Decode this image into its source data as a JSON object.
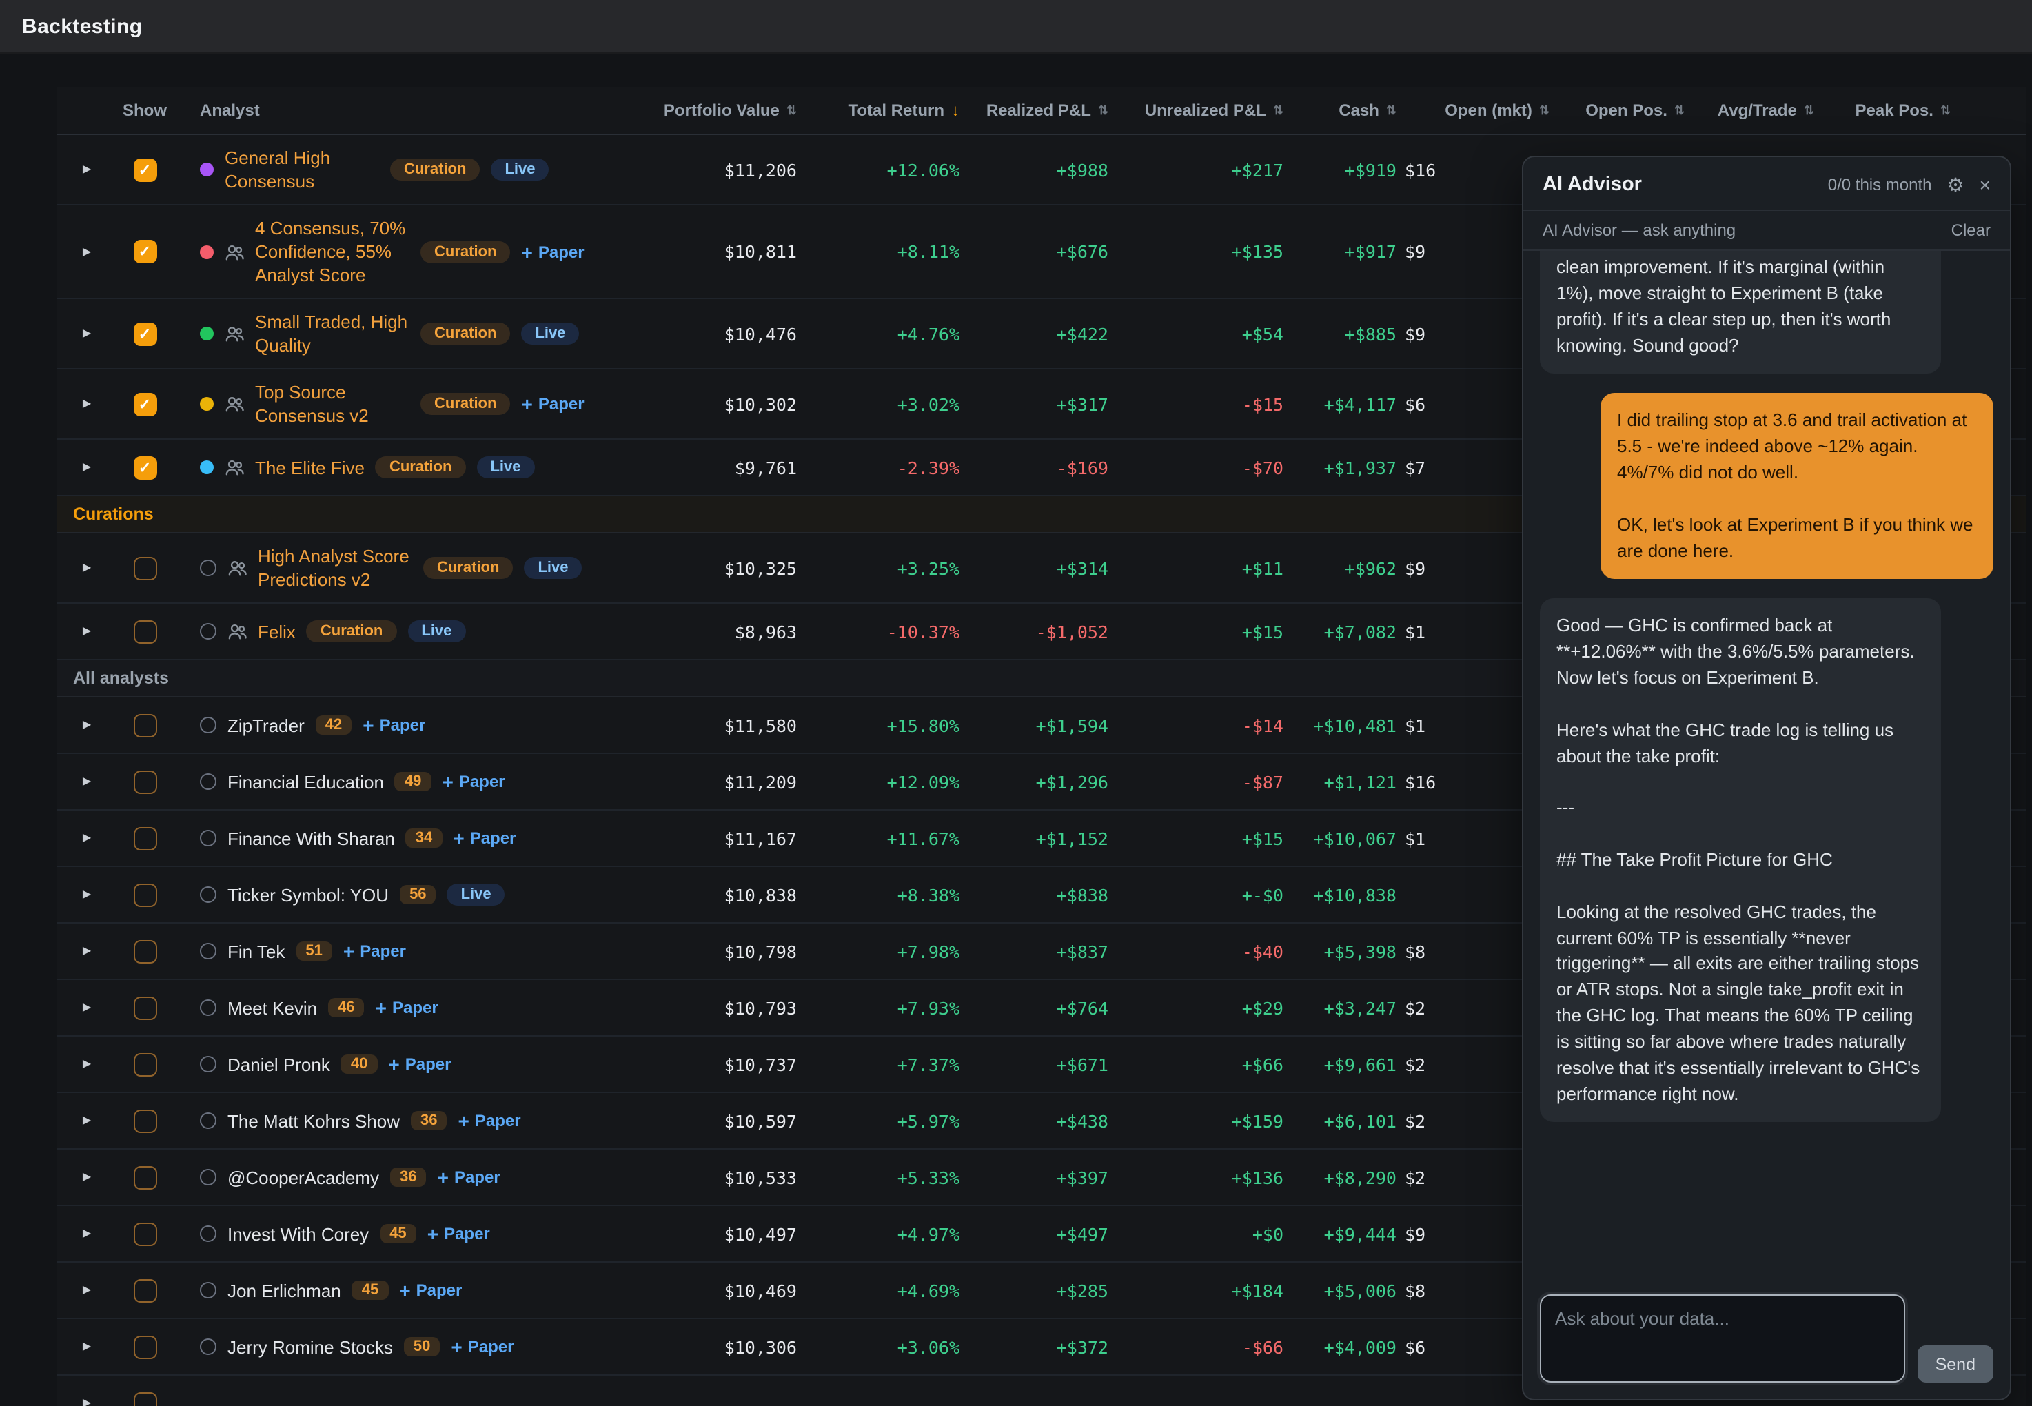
{
  "app": {
    "title": "Backtesting"
  },
  "icons": {
    "expand": "▶",
    "check": "✓",
    "sort": "⇅",
    "sort_desc": "↓",
    "gear": "⚙",
    "close": "×",
    "plus": "+"
  },
  "labels": {
    "curation": "Curation",
    "live": "Live",
    "paper": "Paper"
  },
  "table": {
    "columns": [
      {
        "label": "Show"
      },
      {
        "label": "Analyst"
      },
      {
        "label": "Portfolio Value"
      },
      {
        "label": "Total Return",
        "sorted": "desc"
      },
      {
        "label": "Realized P&L"
      },
      {
        "label": "Unrealized P&L"
      },
      {
        "label": "Cash"
      },
      {
        "label": "Open (mkt)"
      },
      {
        "label": "Open Pos."
      },
      {
        "label": "Avg/Trade"
      },
      {
        "label": "Peak Pos."
      }
    ],
    "rows": [
      {
        "kind": "row",
        "name": "General High Consensus",
        "amber": true,
        "checked": true,
        "dot": "#a855f7",
        "group": false,
        "tags": [
          "curation",
          "live"
        ],
        "pv": "$11,206",
        "tr": "+12.06%",
        "rpl": "+$988",
        "upl": "+$217",
        "cash": "+$919",
        "open": "$16"
      },
      {
        "kind": "row",
        "name": "4 Consensus, 70% Confidence, 55% Analyst Score",
        "amber": true,
        "checked": true,
        "dot": "#f45d6b",
        "group": true,
        "tags": [
          "curation",
          "paper"
        ],
        "pv": "$10,811",
        "tr": "+8.11%",
        "rpl": "+$676",
        "upl": "+$135",
        "cash": "+$917",
        "open": "$9"
      },
      {
        "kind": "row",
        "name": "Small Traded, High Quality",
        "amber": true,
        "checked": true,
        "dot": "#22c55e",
        "group": true,
        "tags": [
          "curation",
          "live"
        ],
        "pv": "$10,476",
        "tr": "+4.76%",
        "rpl": "+$422",
        "upl": "+$54",
        "cash": "+$885",
        "open": "$9"
      },
      {
        "kind": "row",
        "name": "Top Source Consensus v2",
        "amber": true,
        "checked": true,
        "dot": "#eab308",
        "group": true,
        "tags": [
          "curation",
          "paper"
        ],
        "pv": "$10,302",
        "tr": "+3.02%",
        "rpl": "+$317",
        "upl": "-$15",
        "cash": "+$4,117",
        "open": "$6"
      },
      {
        "kind": "row",
        "name": "The Elite Five",
        "amber": true,
        "checked": true,
        "dot": "#38bdf8",
        "group": true,
        "tags": [
          "curation",
          "live"
        ],
        "pv": "$9,761",
        "tr": "-2.39%",
        "rpl": "-$169",
        "upl": "-$70",
        "cash": "+$1,937",
        "open": "$7"
      },
      {
        "kind": "section",
        "label": "Curations"
      },
      {
        "kind": "row",
        "name": "High Analyst Score Predictions v2",
        "amber": true,
        "checked": false,
        "dot": null,
        "group": true,
        "tags": [
          "curation",
          "live"
        ],
        "pv": "$10,325",
        "tr": "+3.25%",
        "rpl": "+$314",
        "upl": "+$11",
        "cash": "+$962",
        "open": "$9"
      },
      {
        "kind": "row",
        "name": "Felix",
        "amber": true,
        "checked": false,
        "dot": null,
        "group": true,
        "tags": [
          "curation",
          "live"
        ],
        "pv": "$8,963",
        "tr": "-10.37%",
        "rpl": "-$1,052",
        "upl": "+$15",
        "cash": "+$7,082",
        "open": "$1"
      },
      {
        "kind": "section",
        "label": "All analysts",
        "muted": true
      },
      {
        "kind": "row",
        "name": "ZipTrader",
        "amber": false,
        "checked": false,
        "dot": null,
        "group": false,
        "tags": [
          "count:42",
          "paper"
        ],
        "pv": "$11,580",
        "tr": "+15.80%",
        "rpl": "+$1,594",
        "upl": "-$14",
        "cash": "+$10,481",
        "open": "$1"
      },
      {
        "kind": "row",
        "name": "Financial Education",
        "amber": false,
        "checked": false,
        "dot": null,
        "group": false,
        "tags": [
          "count:49",
          "paper"
        ],
        "pv": "$11,209",
        "tr": "+12.09%",
        "rpl": "+$1,296",
        "upl": "-$87",
        "cash": "+$1,121",
        "open": "$16"
      },
      {
        "kind": "row",
        "name": "Finance With Sharan",
        "amber": false,
        "checked": false,
        "dot": null,
        "group": false,
        "tags": [
          "count:34",
          "paper"
        ],
        "pv": "$11,167",
        "tr": "+11.67%",
        "rpl": "+$1,152",
        "upl": "+$15",
        "cash": "+$10,067",
        "open": "$1"
      },
      {
        "kind": "row",
        "name": "Ticker Symbol: YOU",
        "amber": false,
        "checked": false,
        "dot": null,
        "group": false,
        "tags": [
          "count:56",
          "live"
        ],
        "pv": "$10,838",
        "tr": "+8.38%",
        "rpl": "+$838",
        "upl": "+-$0",
        "cash": "+$10,838",
        "open": ""
      },
      {
        "kind": "row",
        "name": "Fin Tek",
        "amber": false,
        "checked": false,
        "dot": null,
        "group": false,
        "tags": [
          "count:51",
          "paper"
        ],
        "pv": "$10,798",
        "tr": "+7.98%",
        "rpl": "+$837",
        "upl": "-$40",
        "cash": "+$5,398",
        "open": "$8"
      },
      {
        "kind": "row",
        "name": "Meet Kevin",
        "amber": false,
        "checked": false,
        "dot": null,
        "group": false,
        "tags": [
          "count:46",
          "paper"
        ],
        "pv": "$10,793",
        "tr": "+7.93%",
        "rpl": "+$764",
        "upl": "+$29",
        "cash": "+$3,247",
        "open": "$2"
      },
      {
        "kind": "row",
        "name": "Daniel Pronk",
        "amber": false,
        "checked": false,
        "dot": null,
        "group": false,
        "tags": [
          "count:40",
          "paper"
        ],
        "pv": "$10,737",
        "tr": "+7.37%",
        "rpl": "+$671",
        "upl": "+$66",
        "cash": "+$9,661",
        "open": "$2"
      },
      {
        "kind": "row",
        "name": "The Matt Kohrs Show",
        "amber": false,
        "checked": false,
        "dot": null,
        "group": false,
        "tags": [
          "count:36",
          "paper"
        ],
        "pv": "$10,597",
        "tr": "+5.97%",
        "rpl": "+$438",
        "upl": "+$159",
        "cash": "+$6,101",
        "open": "$2"
      },
      {
        "kind": "row",
        "name": "@CooperAcademy",
        "amber": false,
        "checked": false,
        "dot": null,
        "group": false,
        "tags": [
          "count:36",
          "paper"
        ],
        "pv": "$10,533",
        "tr": "+5.33%",
        "rpl": "+$397",
        "upl": "+$136",
        "cash": "+$8,290",
        "open": "$2"
      },
      {
        "kind": "row",
        "name": "Invest With Corey",
        "amber": false,
        "checked": false,
        "dot": null,
        "group": false,
        "tags": [
          "count:45",
          "paper"
        ],
        "pv": "$10,497",
        "tr": "+4.97%",
        "rpl": "+$497",
        "upl": "+$0",
        "cash": "+$9,444",
        "open": "$9"
      },
      {
        "kind": "row",
        "name": "Jon Erlichman",
        "amber": false,
        "checked": false,
        "dot": null,
        "group": false,
        "tags": [
          "count:45",
          "paper"
        ],
        "pv": "$10,469",
        "tr": "+4.69%",
        "rpl": "+$285",
        "upl": "+$184",
        "cash": "+$5,006",
        "open": "$8"
      },
      {
        "kind": "row",
        "name": "Jerry Romine Stocks",
        "amber": false,
        "checked": false,
        "dot": null,
        "group": false,
        "tags": [
          "count:50",
          "paper"
        ],
        "pv": "$10,306",
        "tr": "+3.06%",
        "rpl": "+$372",
        "upl": "-$66",
        "cash": "+$4,009",
        "open": "$6"
      },
      {
        "kind": "stub"
      }
    ]
  },
  "advisor": {
    "title": "AI Advisor",
    "usage": "0/0 this month",
    "subtitle": "AI Advisor — ask anything",
    "clear": "Clear",
    "messages": [
      {
        "role": "assistant",
        "clipped": true,
        "text": "clean improvement. If it's marginal (within 1%), move straight to Experiment B (take profit). If it's a clear step up, then it's worth knowing. Sound good?"
      },
      {
        "role": "user",
        "text": "I did trailing stop at 3.6 and trail activation at 5.5 - we're indeed above ~12% again. 4%/7% did not do well.\n\nOK, let's look at Experiment B if you think we are done here."
      },
      {
        "role": "assistant",
        "text": "Good — GHC is confirmed back at **+12.06%** with the 3.6%/5.5% parameters. Now let's focus on Experiment B.\n\nHere's what the GHC trade log is telling us about the take profit:\n\n---\n\n## The Take Profit Picture for GHC\n\nLooking at the resolved GHC trades, the current 60% TP is essentially **never triggering** — all exits are either trailing stops or ATR stops. Not a single take_profit exit in the GHC log. That means the 60% TP ceiling is sitting so far above where trades naturally resolve that it's essentially irrelevant to GHC's performance right now."
      }
    ],
    "input_placeholder": "Ask about your data...",
    "send": "Send"
  }
}
